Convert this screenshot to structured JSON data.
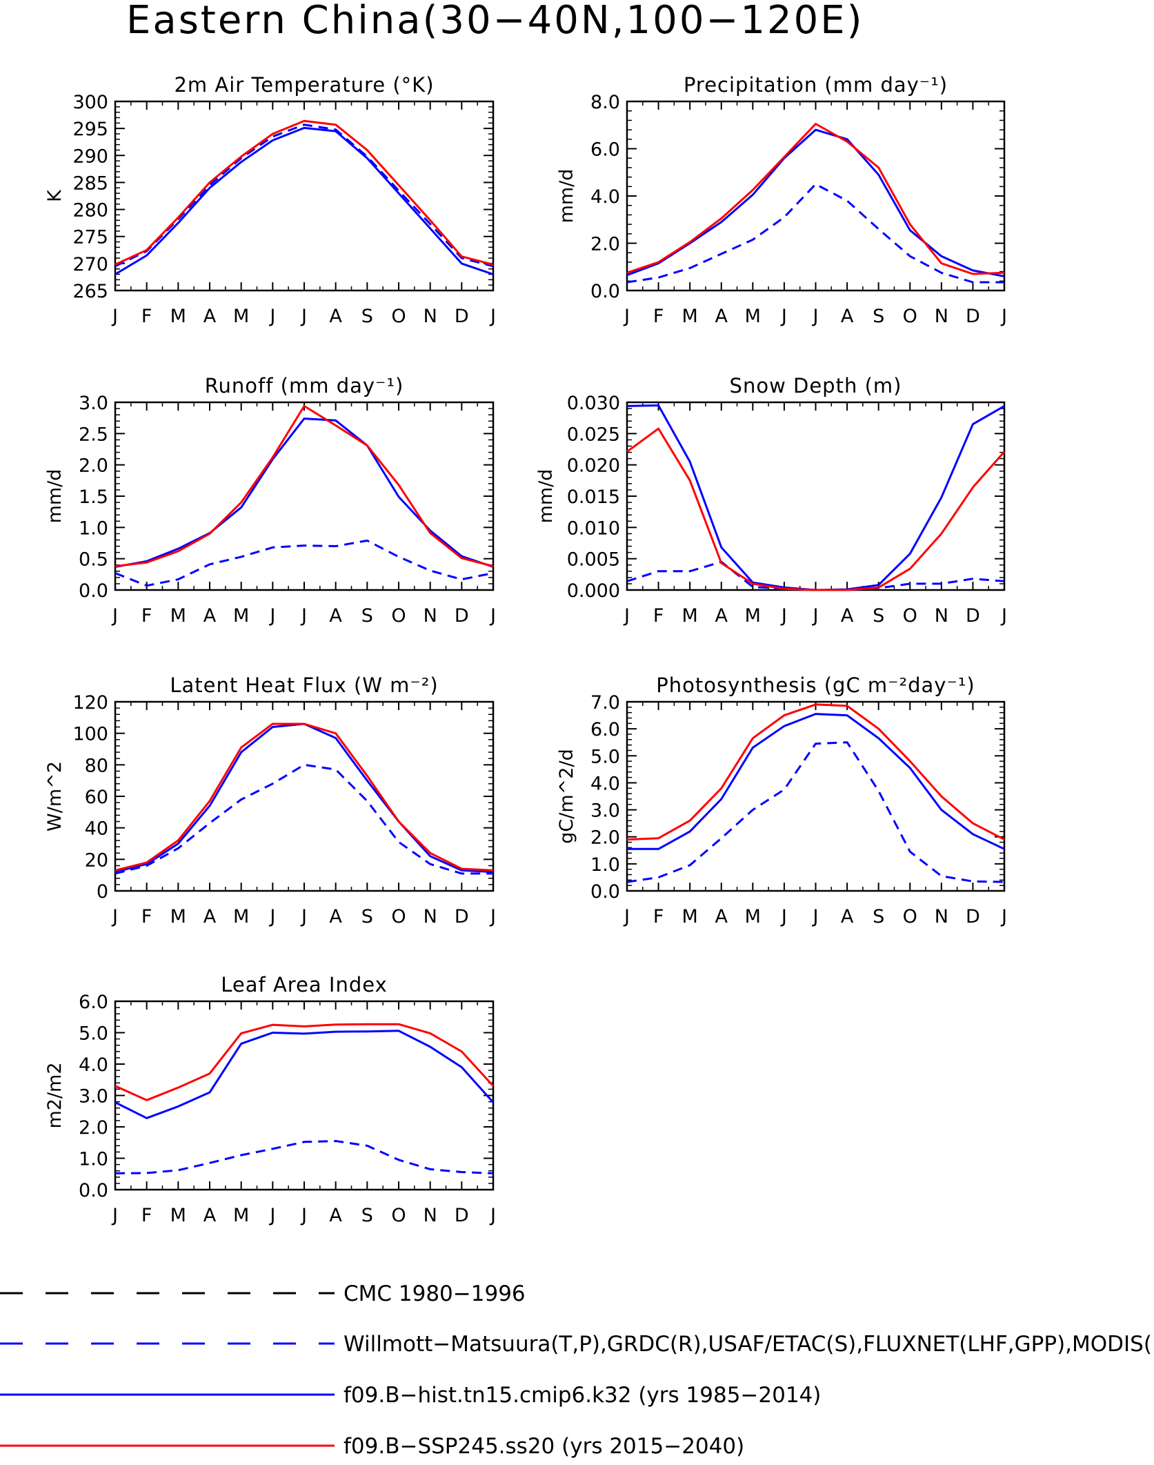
{
  "title": "Eastern China(30−40N,100−120E)",
  "months": [
    "J",
    "F",
    "M",
    "A",
    "M",
    "J",
    "J",
    "A",
    "S",
    "O",
    "N",
    "D",
    "J"
  ],
  "colors": {
    "obs": "#0000ff",
    "hist": "#0000ff",
    "ssp": "#ff0000",
    "cmc": "#000000"
  },
  "legend": [
    {
      "label": "CMC 1980−1996",
      "color": "#000000",
      "dash": true
    },
    {
      "label": "Willmott−Matsuura(T,P),GRDC(R),USAF/ETAC(S),FLUXNET(LHF,GPP),MODIS(L",
      "color": "#0000ff",
      "dash": true
    },
    {
      "label": "f09.B−hist.tn15.cmip6.k32 (yrs 1985−2014)",
      "color": "#0000ff",
      "dash": false
    },
    {
      "label": "f09.B−SSP245.ss20 (yrs 2015−2040)",
      "color": "#ff0000",
      "dash": false
    }
  ],
  "chart_data": [
    {
      "type": "line",
      "title": "2m Air Temperature (°K)",
      "ylabel": "K",
      "ylim": [
        265,
        300
      ],
      "yticks": [
        "265",
        "270",
        "275",
        "280",
        "285",
        "290",
        "295",
        "300"
      ],
      "x": [
        "J",
        "F",
        "M",
        "A",
        "M",
        "J",
        "J",
        "A",
        "S",
        "O",
        "N",
        "D",
        "J"
      ],
      "series": [
        {
          "key": "obs",
          "values": [
            269.5,
            272.3,
            278.2,
            284.5,
            289.5,
            293.5,
            295.7,
            294.8,
            289.8,
            283.5,
            277.3,
            271.0,
            269.5
          ]
        },
        {
          "key": "hist",
          "values": [
            268.0,
            271.5,
            277.5,
            284.0,
            288.8,
            292.8,
            295.1,
            294.5,
            289.5,
            283.0,
            276.5,
            270.0,
            268.0
          ]
        },
        {
          "key": "ssp",
          "values": [
            269.8,
            272.5,
            278.5,
            285.0,
            289.8,
            294.0,
            296.4,
            295.7,
            291.0,
            284.5,
            278.0,
            271.3,
            269.8
          ]
        }
      ]
    },
    {
      "type": "line",
      "title": "Precipitation (mm day⁻¹)",
      "ylabel": "mm/d",
      "ylim": [
        0,
        8
      ],
      "yticks": [
        "0.0",
        "2.0",
        "4.0",
        "6.0",
        "8.0"
      ],
      "x": [
        "J",
        "F",
        "M",
        "A",
        "M",
        "J",
        "J",
        "A",
        "S",
        "O",
        "N",
        "D",
        "J"
      ],
      "series": [
        {
          "key": "obs",
          "values": [
            0.35,
            0.55,
            0.95,
            1.55,
            2.15,
            3.1,
            4.5,
            3.8,
            2.6,
            1.45,
            0.75,
            0.35,
            0.35
          ]
        },
        {
          "key": "hist",
          "values": [
            0.65,
            1.15,
            2.0,
            2.9,
            4.05,
            5.6,
            6.8,
            6.4,
            4.9,
            2.55,
            1.45,
            0.85,
            0.6
          ]
        },
        {
          "key": "ssp",
          "values": [
            0.75,
            1.2,
            2.05,
            3.05,
            4.25,
            5.65,
            7.05,
            6.3,
            5.2,
            2.8,
            1.15,
            0.7,
            0.75
          ]
        }
      ]
    },
    {
      "type": "line",
      "title": "Runoff (mm day⁻¹)",
      "ylabel": "mm/d",
      "ylim": [
        0,
        3
      ],
      "yticks": [
        "0.0",
        "0.5",
        "1.0",
        "1.5",
        "2.0",
        "2.5",
        "3.0"
      ],
      "x": [
        "J",
        "F",
        "M",
        "A",
        "M",
        "J",
        "J",
        "A",
        "S",
        "O",
        "N",
        "D",
        "J"
      ],
      "series": [
        {
          "key": "obs",
          "values": [
            0.27,
            0.07,
            0.17,
            0.41,
            0.53,
            0.68,
            0.71,
            0.7,
            0.79,
            0.53,
            0.31,
            0.17,
            0.27
          ]
        },
        {
          "key": "hist",
          "values": [
            0.37,
            0.46,
            0.66,
            0.91,
            1.32,
            2.09,
            2.74,
            2.71,
            2.31,
            1.49,
            0.95,
            0.54,
            0.37
          ]
        },
        {
          "key": "ssp",
          "values": [
            0.38,
            0.44,
            0.62,
            0.9,
            1.4,
            2.12,
            2.94,
            2.63,
            2.31,
            1.68,
            0.91,
            0.51,
            0.38
          ]
        }
      ]
    },
    {
      "type": "line",
      "title": "Snow Depth (m)",
      "ylabel": "mm/d",
      "ylim": [
        0,
        0.03
      ],
      "yticks": [
        "0.000",
        "0.005",
        "0.010",
        "0.015",
        "0.020",
        "0.025",
        "0.030"
      ],
      "x": [
        "J",
        "F",
        "M",
        "A",
        "M",
        "J",
        "J",
        "A",
        "S",
        "O",
        "N",
        "D",
        "J"
      ],
      "series": [
        {
          "key": "cmc",
          "values": [
            0.0,
            0.0,
            0.0,
            0.0,
            0.0,
            0.0,
            0.0,
            0.0,
            0.0,
            0.0,
            0.0,
            0.0,
            0.0
          ]
        },
        {
          "key": "obs",
          "values": [
            0.0014,
            0.003,
            0.003,
            0.0045,
            0.0005,
            0.0002,
            0.0,
            0.0,
            0.0003,
            0.001,
            0.001,
            0.0018,
            0.0014
          ]
        },
        {
          "key": "hist",
          "values": [
            0.0294,
            0.0295,
            0.0205,
            0.0068,
            0.0012,
            0.0004,
            0.0,
            0.0001,
            0.0008,
            0.0058,
            0.0148,
            0.0265,
            0.0294
          ]
        },
        {
          "key": "ssp",
          "values": [
            0.0221,
            0.0258,
            0.0175,
            0.0043,
            0.001,
            0.0002,
            0.0,
            0.0,
            0.0004,
            0.0034,
            0.009,
            0.0164,
            0.0221
          ]
        }
      ]
    },
    {
      "type": "line",
      "title": "Latent Heat Flux (W m⁻²)",
      "ylabel": "W/m^2",
      "ylim": [
        0,
        120
      ],
      "yticks": [
        "0",
        "20",
        "40",
        "60",
        "80",
        "100",
        "120"
      ],
      "x": [
        "J",
        "F",
        "M",
        "A",
        "M",
        "J",
        "J",
        "A",
        "S",
        "O",
        "N",
        "D",
        "J"
      ],
      "series": [
        {
          "key": "obs",
          "values": [
            11,
            16,
            27,
            43,
            58,
            68,
            80,
            77,
            57,
            31,
            17,
            11,
            11
          ]
        },
        {
          "key": "hist",
          "values": [
            12,
            17,
            30,
            54,
            88,
            104,
            106,
            97,
            70,
            44,
            22,
            13,
            12
          ]
        },
        {
          "key": "ssp",
          "values": [
            13,
            18,
            32,
            57,
            91,
            106,
            106,
            100,
            73,
            44,
            24,
            14,
            13
          ]
        }
      ]
    },
    {
      "type": "line",
      "title": "Photosynthesis (gC m⁻²day⁻¹)",
      "ylabel": "gC/m^2/d",
      "ylim": [
        0,
        7
      ],
      "yticks": [
        "0.0",
        "1.0",
        "2.0",
        "3.0",
        "4.0",
        "5.0",
        "6.0",
        "7.0"
      ],
      "x": [
        "J",
        "F",
        "M",
        "A",
        "M",
        "J",
        "J",
        "A",
        "S",
        "O",
        "N",
        "D",
        "J"
      ],
      "series": [
        {
          "key": "obs",
          "values": [
            0.33,
            0.5,
            0.95,
            1.95,
            3.0,
            3.75,
            5.45,
            5.5,
            3.7,
            1.45,
            0.55,
            0.35,
            0.33
          ]
        },
        {
          "key": "hist",
          "values": [
            1.55,
            1.55,
            2.2,
            3.4,
            5.3,
            6.1,
            6.55,
            6.5,
            5.65,
            4.55,
            3.0,
            2.1,
            1.55
          ]
        },
        {
          "key": "ssp",
          "values": [
            1.9,
            1.95,
            2.6,
            3.8,
            5.65,
            6.5,
            6.9,
            6.85,
            6.0,
            4.8,
            3.5,
            2.5,
            1.9
          ]
        }
      ]
    },
    {
      "type": "line",
      "title": "Leaf Area Index",
      "ylabel": "m2/m2",
      "ylim": [
        0,
        6
      ],
      "yticks": [
        "0.0",
        "1.0",
        "2.0",
        "3.0",
        "4.0",
        "5.0",
        "6.0"
      ],
      "x": [
        "J",
        "F",
        "M",
        "A",
        "M",
        "J",
        "J",
        "A",
        "S",
        "O",
        "N",
        "D",
        "J"
      ],
      "series": [
        {
          "key": "obs",
          "values": [
            0.52,
            0.53,
            0.62,
            0.85,
            1.1,
            1.3,
            1.52,
            1.55,
            1.4,
            0.95,
            0.65,
            0.56,
            0.52
          ]
        },
        {
          "key": "hist",
          "values": [
            2.78,
            2.28,
            2.65,
            3.1,
            4.65,
            5.0,
            4.97,
            5.03,
            5.04,
            5.06,
            4.55,
            3.9,
            2.78
          ]
        },
        {
          "key": "ssp",
          "values": [
            3.3,
            2.85,
            3.25,
            3.7,
            4.98,
            5.25,
            5.2,
            5.26,
            5.27,
            5.27,
            4.98,
            4.4,
            3.3
          ]
        }
      ]
    }
  ]
}
